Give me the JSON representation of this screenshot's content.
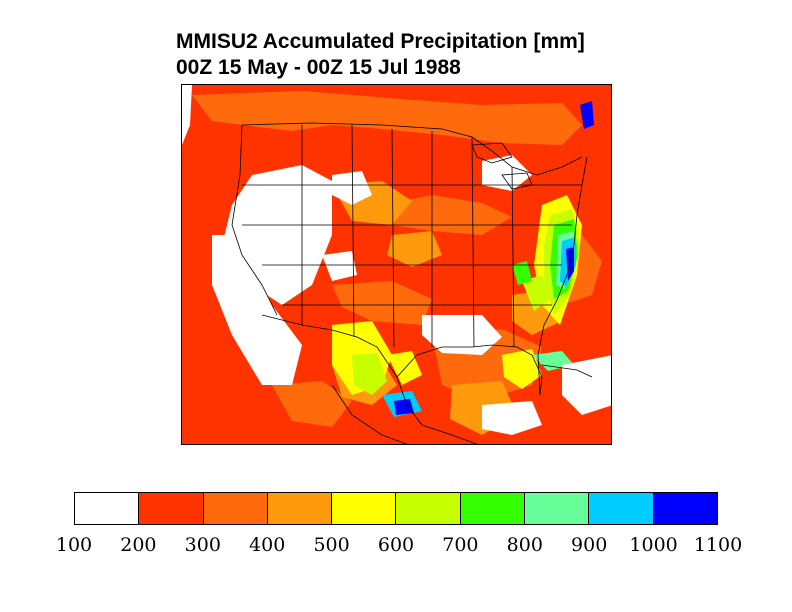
{
  "title": {
    "line1": "MMISU2 Accumulated Precipitation [mm]",
    "line2": "00Z 15 May - 00Z 15 Jul 1988"
  },
  "map": {
    "region": "North America (contiguous US, northern Mexico, southern Canada)",
    "field": "accumulated precipitation",
    "colors": {
      "background": "#ffffff",
      "border_lines": "#000000"
    }
  },
  "colorbar": {
    "tick_labels": [
      "100",
      "200",
      "300",
      "400",
      "500",
      "600",
      "700",
      "800",
      "900",
      "1000",
      "1100"
    ],
    "bins": [
      {
        "range": [
          100,
          200
        ],
        "color": "#ffffff"
      },
      {
        "range": [
          200,
          300
        ],
        "color": "#ff3300"
      },
      {
        "range": [
          300,
          400
        ],
        "color": "#ff6a0d"
      },
      {
        "range": [
          400,
          500
        ],
        "color": "#ff9a0d"
      },
      {
        "range": [
          500,
          600
        ],
        "color": "#ffff00"
      },
      {
        "range": [
          600,
          700
        ],
        "color": "#c8ff00"
      },
      {
        "range": [
          700,
          800
        ],
        "color": "#33ff00"
      },
      {
        "range": [
          800,
          900
        ],
        "color": "#66ff99"
      },
      {
        "range": [
          900,
          1000
        ],
        "color": "#00ccff"
      },
      {
        "range": [
          1000,
          1100
        ],
        "color": "#0000ff"
      }
    ]
  }
}
